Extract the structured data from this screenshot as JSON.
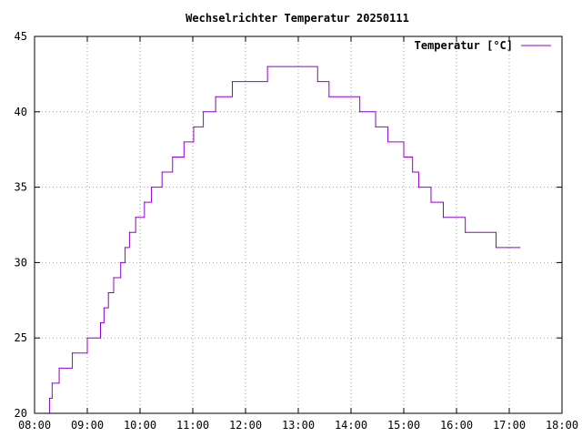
{
  "chart_data": {
    "type": "line",
    "title": "Wechselrichter Temperatur 20250111",
    "xlabel": "",
    "ylabel": "",
    "xlim": [
      "08:00",
      "18:00"
    ],
    "ylim": [
      20,
      45
    ],
    "x_ticks": [
      "08:00",
      "09:00",
      "10:00",
      "11:00",
      "12:00",
      "13:00",
      "14:00",
      "15:00",
      "16:00",
      "17:00",
      "18:00"
    ],
    "y_ticks": [
      20,
      25,
      30,
      35,
      40,
      45
    ],
    "grid": true,
    "legend": "top-right",
    "series": [
      {
        "name": "Temperatur [°C]",
        "color": "#9400d3",
        "step": "post",
        "points": [
          [
            "08:15",
            20
          ],
          [
            "08:17",
            21
          ],
          [
            "08:20",
            22
          ],
          [
            "08:28",
            23
          ],
          [
            "08:43",
            24
          ],
          [
            "09:00",
            25
          ],
          [
            "09:15",
            26
          ],
          [
            "09:19",
            27
          ],
          [
            "09:24",
            28
          ],
          [
            "09:30",
            29
          ],
          [
            "09:38",
            30
          ],
          [
            "09:43",
            31
          ],
          [
            "09:48",
            32
          ],
          [
            "09:55",
            33
          ],
          [
            "10:05",
            34
          ],
          [
            "10:13",
            35
          ],
          [
            "10:25",
            36
          ],
          [
            "10:37",
            37
          ],
          [
            "10:50",
            38
          ],
          [
            "11:01",
            39
          ],
          [
            "11:12",
            40
          ],
          [
            "11:26",
            41
          ],
          [
            "11:45",
            42
          ],
          [
            "12:25",
            43
          ],
          [
            "13:22",
            42
          ],
          [
            "13:35",
            41
          ],
          [
            "14:10",
            40
          ],
          [
            "14:28",
            39
          ],
          [
            "14:42",
            38
          ],
          [
            "15:00",
            37
          ],
          [
            "15:10",
            36
          ],
          [
            "15:17",
            35
          ],
          [
            "15:31",
            34
          ],
          [
            "15:45",
            33
          ],
          [
            "16:10",
            32
          ],
          [
            "16:45",
            31
          ],
          [
            "17:12",
            31
          ]
        ]
      }
    ]
  }
}
